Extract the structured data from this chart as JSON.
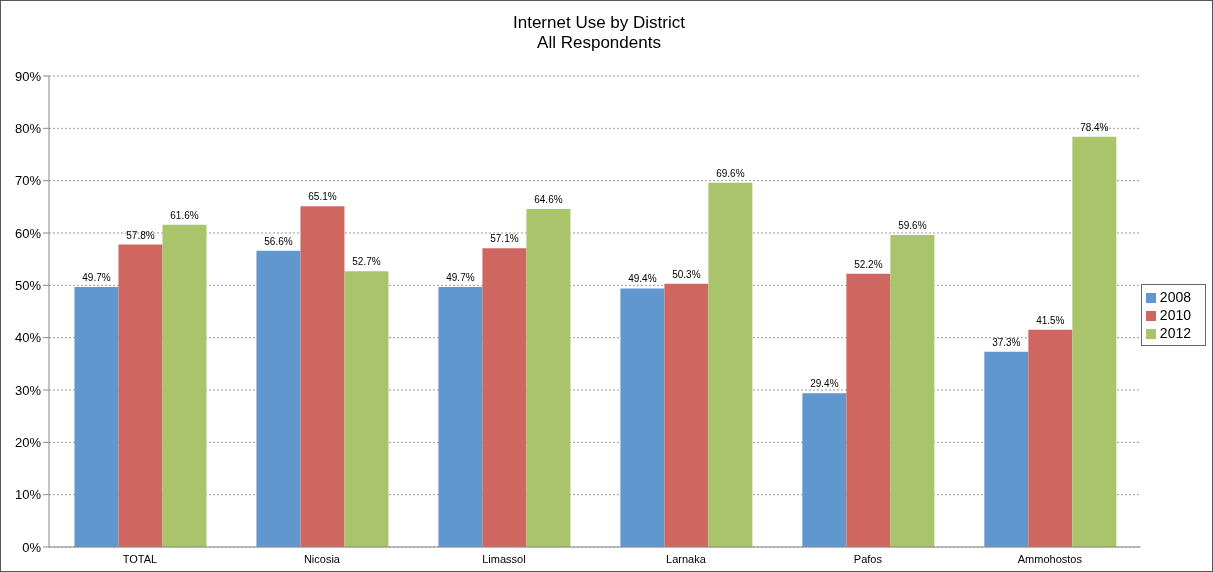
{
  "chart_data": {
    "type": "bar",
    "title": "Internet Use by District",
    "subtitle": "All Respondents",
    "categories": [
      "TOTAL",
      "Nicosia",
      "Limassol",
      "Larnaka",
      "Pafos",
      "Ammohostos"
    ],
    "series": [
      {
        "name": "2008",
        "color": "#6097ce",
        "values": [
          49.7,
          56.6,
          49.7,
          49.4,
          29.4,
          37.3
        ],
        "value_labels": [
          "49.7%",
          "56.6%",
          "49.7%",
          "49.4%",
          "29.4%",
          "37.3%"
        ]
      },
      {
        "name": "2010",
        "color": "#cf6660",
        "values": [
          57.8,
          65.1,
          57.1,
          50.3,
          52.2,
          41.5
        ],
        "value_labels": [
          "57.8%",
          "65.1%",
          "57.1%",
          "50.3%",
          "52.2%",
          "41.5%"
        ]
      },
      {
        "name": "2012",
        "color": "#a9c46a",
        "values": [
          61.6,
          52.7,
          64.6,
          69.6,
          59.6,
          78.4
        ],
        "value_labels": [
          "61.6%",
          "52.7%",
          "64.6%",
          "69.6%",
          "59.6%",
          "78.4%"
        ]
      }
    ],
    "ylim": [
      0,
      90
    ],
    "yticks": [
      {
        "value": 0,
        "label": "0%"
      },
      {
        "value": 10,
        "label": "10%"
      },
      {
        "value": 20,
        "label": "20%"
      },
      {
        "value": 30,
        "label": "30%"
      },
      {
        "value": 40,
        "label": "40%"
      },
      {
        "value": 50,
        "label": "50%"
      },
      {
        "value": 60,
        "label": "60%"
      },
      {
        "value": 70,
        "label": "70%"
      },
      {
        "value": 80,
        "label": "80%"
      },
      {
        "value": 90,
        "label": "90%"
      }
    ],
    "grid": "y",
    "legend": "right"
  }
}
